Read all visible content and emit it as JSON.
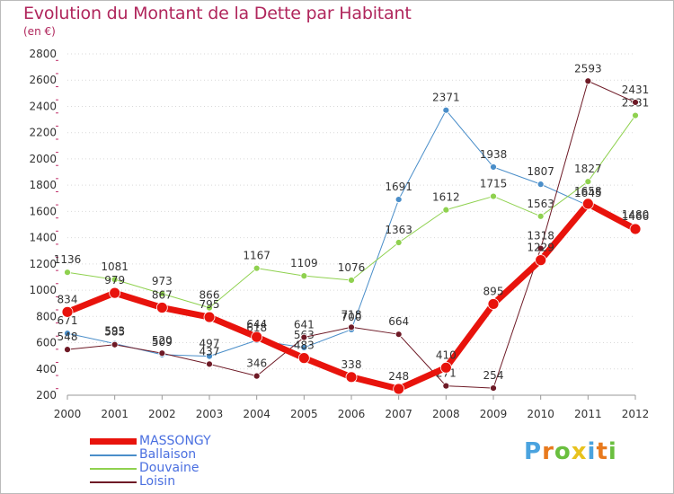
{
  "title": "Evolution du Montant de la Dette par Habitant",
  "unit": "(en €)",
  "logo": {
    "text": "Proxiti",
    "letter_colors": [
      "#4aa3df",
      "#e87a1e",
      "#6abf3f",
      "#e8c21e",
      "#4aa3df",
      "#e87a1e",
      "#6abf3f"
    ]
  },
  "chart_data": {
    "type": "line",
    "x": [
      "2000",
      "2001",
      "2002",
      "2003",
      "2004",
      "2005",
      "2006",
      "2007",
      "2008",
      "2009",
      "2010",
      "2011",
      "2012"
    ],
    "ylim": [
      200,
      2800
    ],
    "yticks": [
      200,
      400,
      600,
      800,
      1000,
      1200,
      1400,
      1600,
      1800,
      2000,
      2200,
      2400,
      2600,
      2800
    ],
    "grid": "y-dotted",
    "legend_position": "bottom-left",
    "series": [
      {
        "name": "Ballaison",
        "color": "#4a8ec9",
        "width": 1,
        "values": [
          671,
          593,
          509,
          497,
          618,
          563,
          700,
          1691,
          2371,
          1938,
          1807,
          1645,
          1480
        ]
      },
      {
        "name": "Douvaine",
        "color": "#8fd14f",
        "width": 1,
        "values": [
          1136,
          1081,
          973,
          866,
          1167,
          1109,
          1076,
          1363,
          1612,
          1715,
          1563,
          1827,
          2331
        ]
      },
      {
        "name": "Loisin",
        "color": "#6e1a26",
        "width": 1,
        "values": [
          548,
          585,
          520,
          437,
          346,
          641,
          718,
          664,
          271,
          254,
          1318,
          2593,
          2431
        ]
      },
      {
        "name": "MASSONGY",
        "color": "#e8130c",
        "width": 7,
        "values": [
          834,
          979,
          867,
          795,
          644,
          483,
          338,
          248,
          410,
          895,
          1229,
          1658,
          1466
        ]
      }
    ]
  }
}
